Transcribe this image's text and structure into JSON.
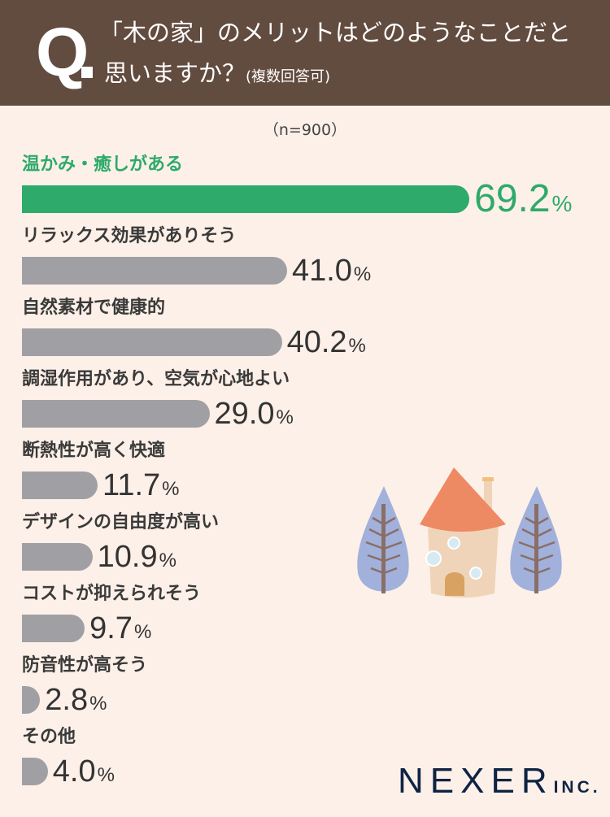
{
  "header": {
    "q": "Q",
    "title_line1": "「木の家」のメリットはどのようなことだと",
    "title_line2": "思いますか？",
    "note": "(複数回答可)"
  },
  "sample": "（n=900）",
  "logo": {
    "main": "NEXER",
    "suffix": "INC."
  },
  "colors": {
    "header": "#624b3f",
    "background": "#fdf0e8",
    "highlight": "#2eaa6a",
    "bar": "#a0a0a4"
  },
  "chart_data": {
    "type": "bar",
    "orientation": "horizontal",
    "unit": "%",
    "categories": [
      "温かみ・癒しがある",
      "リラックス効果がありそう",
      "自然素材で健康的",
      "調湿作用があり、空気が心地よい",
      "断熱性が高く快適",
      "デザインの自由度が高い",
      "コストが抑えられそう",
      "防音性が高そう",
      "その他"
    ],
    "values": [
      69.2,
      41.0,
      40.2,
      29.0,
      11.7,
      10.9,
      9.7,
      2.8,
      4.0
    ],
    "labels": [
      "69.2",
      "41.0",
      "40.2",
      "29.0",
      "11.7",
      "10.9",
      "9.7",
      "2.8",
      "4.0"
    ],
    "highlight_index": 0,
    "grid": false
  }
}
